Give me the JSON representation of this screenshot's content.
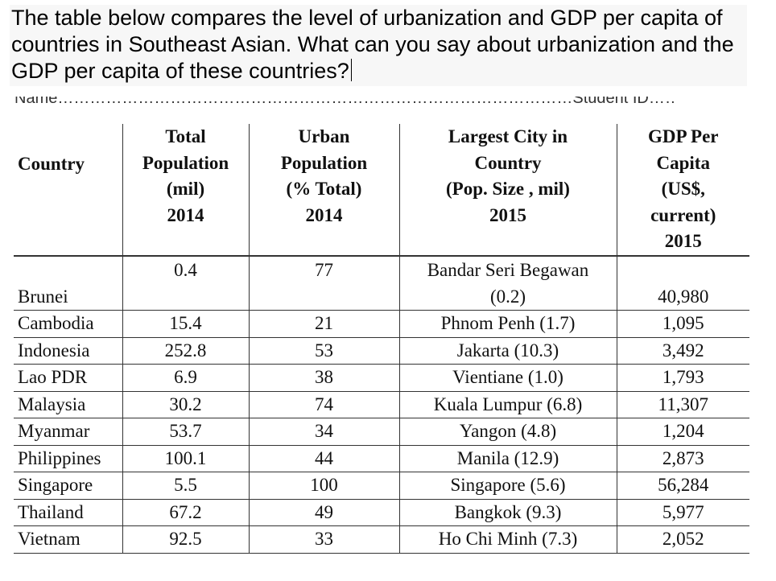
{
  "question": {
    "text": "The table below compares the level of urbanization and GDP per capita of countries in Southeast Asian. What can you say about urbanization and the GDP per capita of these countries?"
  },
  "cutoff_line": {
    "text": "Name……………………………………………………………………………………Student ID……………………………"
  },
  "table": {
    "headers": {
      "country": "Country",
      "total_population": [
        "Total",
        "Population",
        "(mil)",
        "2014"
      ],
      "urban_population": [
        "Urban",
        "Population",
        "(% Total)",
        "2014"
      ],
      "largest_city": [
        "Largest City in",
        "Country",
        "(Pop. Size , mil)",
        "2015"
      ],
      "gdp": [
        "GDP Per",
        "Capita",
        "(US$,",
        "current)",
        "2015"
      ]
    },
    "rows": [
      {
        "country": "Brunei",
        "population": "0.4",
        "urban": "77",
        "city": [
          "Bandar Seri Begawan",
          "(0.2)"
        ],
        "gdp": "40,980"
      },
      {
        "country": "Cambodia",
        "population": "15.4",
        "urban": "21",
        "city": [
          "Phnom Penh (1.7)"
        ],
        "gdp": "1,095"
      },
      {
        "country": "Indonesia",
        "population": "252.8",
        "urban": "53",
        "city": [
          "Jakarta (10.3)"
        ],
        "gdp": "3,492"
      },
      {
        "country": "Lao PDR",
        "population": "6.9",
        "urban": "38",
        "city": [
          "Vientiane (1.0)"
        ],
        "gdp": "1,793"
      },
      {
        "country": "Malaysia",
        "population": "30.2",
        "urban": "74",
        "city": [
          "Kuala Lumpur (6.8)"
        ],
        "gdp": "11,307"
      },
      {
        "country": "Myanmar",
        "population": "53.7",
        "urban": "34",
        "city": [
          "Yangon (4.8)"
        ],
        "gdp": "1,204"
      },
      {
        "country": "Philippines",
        "population": "100.1",
        "urban": "44",
        "city": [
          "Manila (12.9)"
        ],
        "gdp": "2,873"
      },
      {
        "country": "Singapore",
        "population": "5.5",
        "urban": "100",
        "city": [
          "Singapore (5.6)"
        ],
        "gdp": "56,284"
      },
      {
        "country": "Thailand",
        "population": "67.2",
        "urban": "49",
        "city": [
          "Bangkok (9.3)"
        ],
        "gdp": "5,977"
      },
      {
        "country": "Vietnam",
        "population": "92.5",
        "urban": "33",
        "city": [
          "Ho Chi Minh (7.3)"
        ],
        "gdp": "2,052"
      }
    ]
  }
}
